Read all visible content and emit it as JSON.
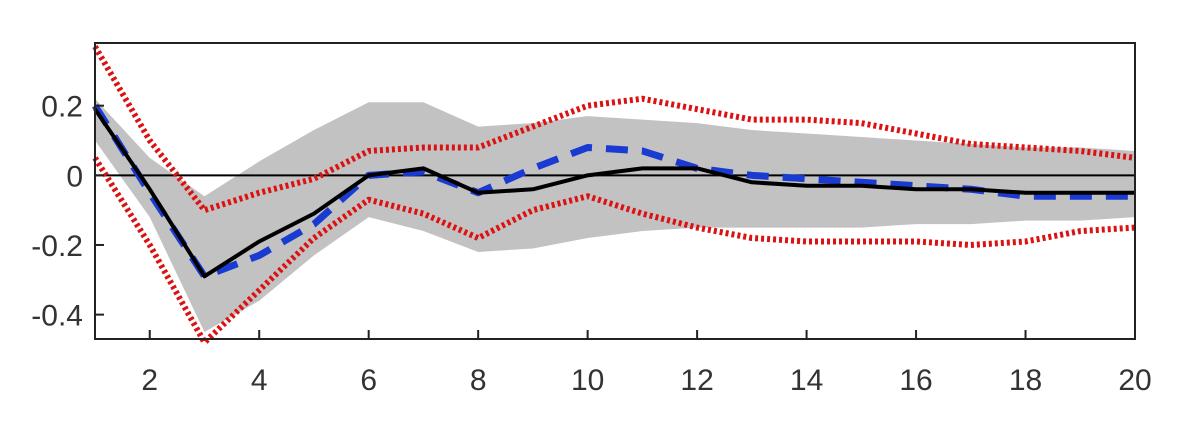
{
  "chart_data": {
    "type": "line",
    "title": "",
    "xlabel": "",
    "ylabel": "",
    "xlim": [
      1,
      20
    ],
    "ylim": [
      -0.47,
      0.38
    ],
    "xticks": [
      2,
      4,
      6,
      8,
      10,
      12,
      14,
      16,
      18,
      20
    ],
    "yticks": [
      0.2,
      0,
      -0.2,
      -0.4
    ],
    "xtick_labels": [
      "2",
      "4",
      "6",
      "8",
      "10",
      "12",
      "14",
      "16",
      "18",
      "20"
    ],
    "ytick_labels": [
      "0.2",
      "0",
      "-0.2",
      "-0.4"
    ],
    "grid": false,
    "zero_line": true,
    "x": [
      1,
      2,
      3,
      4,
      5,
      6,
      7,
      8,
      9,
      10,
      11,
      12,
      13,
      14,
      15,
      16,
      17,
      18,
      19,
      20
    ],
    "band": {
      "color": "#c2c2c2",
      "upper": [
        0.22,
        0.05,
        -0.06,
        0.04,
        0.13,
        0.21,
        0.21,
        0.14,
        0.15,
        0.17,
        0.16,
        0.15,
        0.13,
        0.12,
        0.11,
        0.1,
        0.09,
        0.08,
        0.08,
        0.07
      ],
      "lower": [
        0.1,
        -0.12,
        -0.45,
        -0.36,
        -0.23,
        -0.12,
        -0.16,
        -0.22,
        -0.21,
        -0.18,
        -0.16,
        -0.15,
        -0.15,
        -0.15,
        -0.15,
        -0.14,
        -0.14,
        -0.13,
        -0.13,
        -0.12
      ]
    },
    "series": [
      {
        "style": "dotted",
        "color": "#dd1111",
        "values": [
          0.37,
          0.1,
          -0.1,
          -0.05,
          -0.01,
          0.07,
          0.08,
          0.08,
          0.14,
          0.2,
          0.22,
          0.19,
          0.16,
          0.16,
          0.15,
          0.12,
          0.09,
          0.08,
          0.07,
          0.05
        ]
      },
      {
        "style": "dotted",
        "color": "#dd1111",
        "values": [
          0.05,
          -0.2,
          -0.48,
          -0.33,
          -0.18,
          -0.07,
          -0.11,
          -0.18,
          -0.1,
          -0.06,
          -0.11,
          -0.15,
          -0.18,
          -0.19,
          -0.19,
          -0.19,
          -0.2,
          -0.19,
          -0.16,
          -0.15
        ]
      },
      {
        "style": "dashed",
        "color": "#1a3bd1",
        "values": [
          0.2,
          -0.05,
          -0.29,
          -0.23,
          -0.14,
          0.0,
          0.01,
          -0.05,
          0.02,
          0.08,
          0.07,
          0.02,
          0.0,
          -0.01,
          -0.02,
          -0.03,
          -0.04,
          -0.06,
          -0.06,
          -0.06
        ]
      },
      {
        "style": "solid",
        "color": "#000000",
        "values": [
          0.19,
          -0.04,
          -0.29,
          -0.19,
          -0.11,
          0.0,
          0.02,
          -0.05,
          -0.04,
          0.0,
          0.02,
          0.02,
          -0.02,
          -0.03,
          -0.03,
          -0.04,
          -0.04,
          -0.05,
          -0.05,
          -0.05
        ]
      }
    ]
  }
}
